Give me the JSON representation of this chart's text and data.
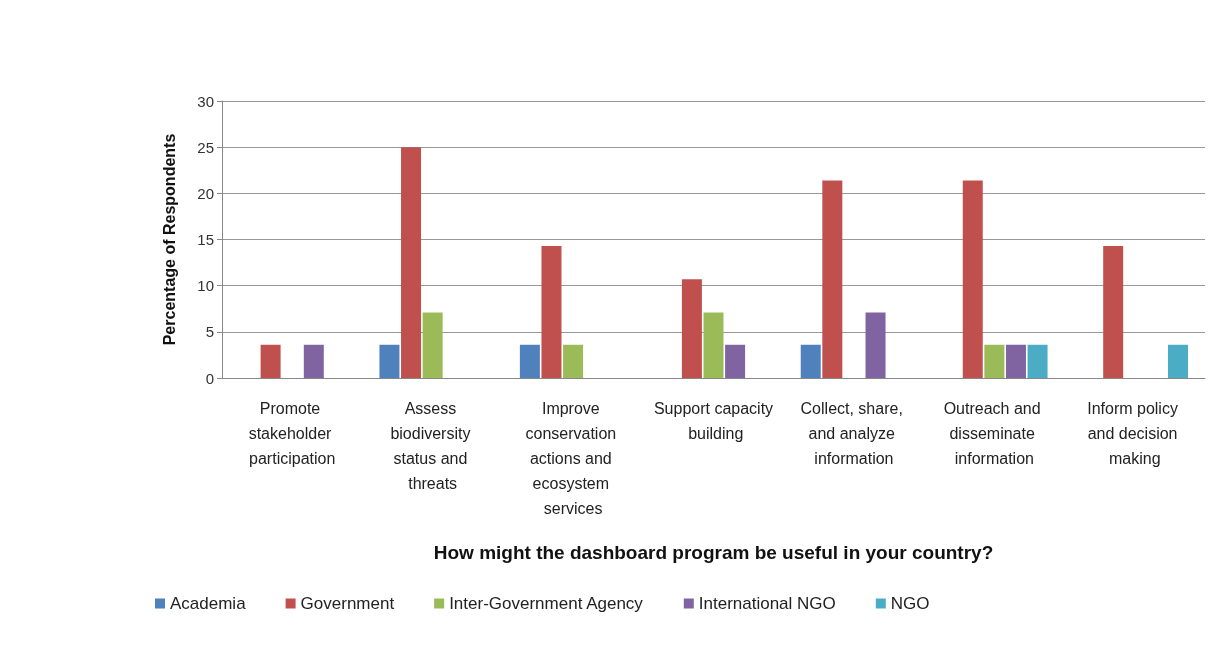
{
  "chart_data": {
    "type": "bar",
    "xlabel": "How might the dashboard program be useful in your country?",
    "ylabel": "Percentage of Respondents",
    "categories": [
      "Promote stakeholder participation",
      "Assess biodiversity status and threats",
      "Improve conservation actions and ecosystem services",
      "Support capacity building",
      "Collect, share, and analyze information",
      "Outreach and disseminate information",
      "Inform policy and decision making"
    ],
    "series": [
      {
        "name": "Academia",
        "color": "#4f81bd",
        "values": [
          0,
          3.6,
          3.6,
          0,
          3.6,
          0,
          0
        ]
      },
      {
        "name": "Government",
        "color": "#c0504d",
        "values": [
          3.6,
          25,
          14.3,
          10.7,
          21.4,
          21.4,
          14.3
        ]
      },
      {
        "name": "Inter-Government Agency",
        "color": "#9bbb59",
        "values": [
          0,
          7.1,
          3.6,
          7.1,
          0,
          3.6,
          0
        ]
      },
      {
        "name": "International NGO",
        "color": "#8064a2",
        "values": [
          3.6,
          0,
          0,
          3.6,
          7.1,
          3.6,
          0
        ]
      },
      {
        "name": "NGO",
        "color": "#4bacc6",
        "values": [
          0,
          0,
          0,
          0,
          0,
          3.6,
          3.6
        ]
      }
    ],
    "ylim": [
      0,
      30
    ],
    "yticks": [
      0,
      5,
      10,
      15,
      20,
      25,
      30
    ],
    "grid": "y",
    "legend": "bottom"
  }
}
